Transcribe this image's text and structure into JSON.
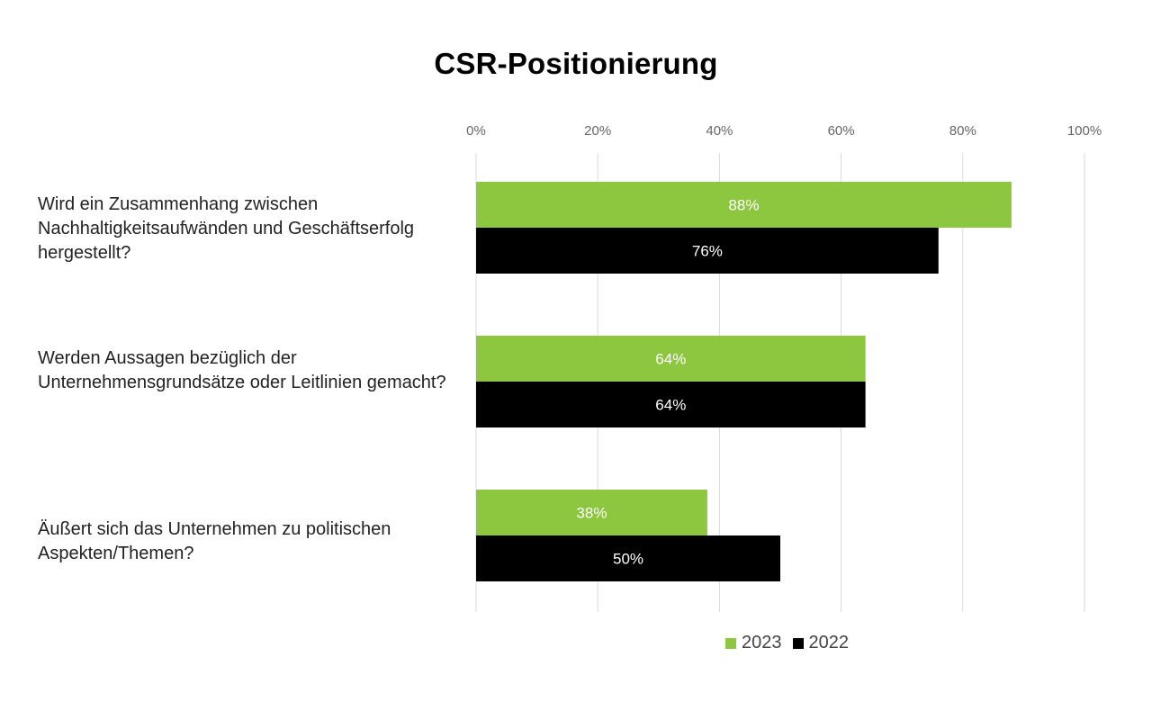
{
  "chart_data": {
    "type": "bar",
    "orientation": "horizontal",
    "title": "CSR-Positionierung",
    "categories": [
      "Wird ein Zusammenhang zwischen Nachhaltigkeitsaufwänden und Geschäftserfolg hergestellt?",
      "Werden Aussagen bezüglich der Unternehmensgrundsätze oder Leitlinien gemacht?",
      "Äußert sich das Unternehmen zu politischen Aspekten/Themen?"
    ],
    "series": [
      {
        "name": "2023",
        "color": "#8dc63f",
        "values": [
          88,
          64,
          38
        ],
        "labels": [
          "88%",
          "64%",
          "38%"
        ]
      },
      {
        "name": "2022",
        "color": "#000000",
        "values": [
          76,
          64,
          50
        ],
        "labels": [
          "76%",
          "64%",
          "50%"
        ]
      }
    ],
    "xlim": [
      0,
      100
    ],
    "xticks": [
      "0%",
      "20%",
      "40%",
      "60%",
      "80%",
      "100%"
    ],
    "grid": true,
    "legend_position": "bottom"
  }
}
